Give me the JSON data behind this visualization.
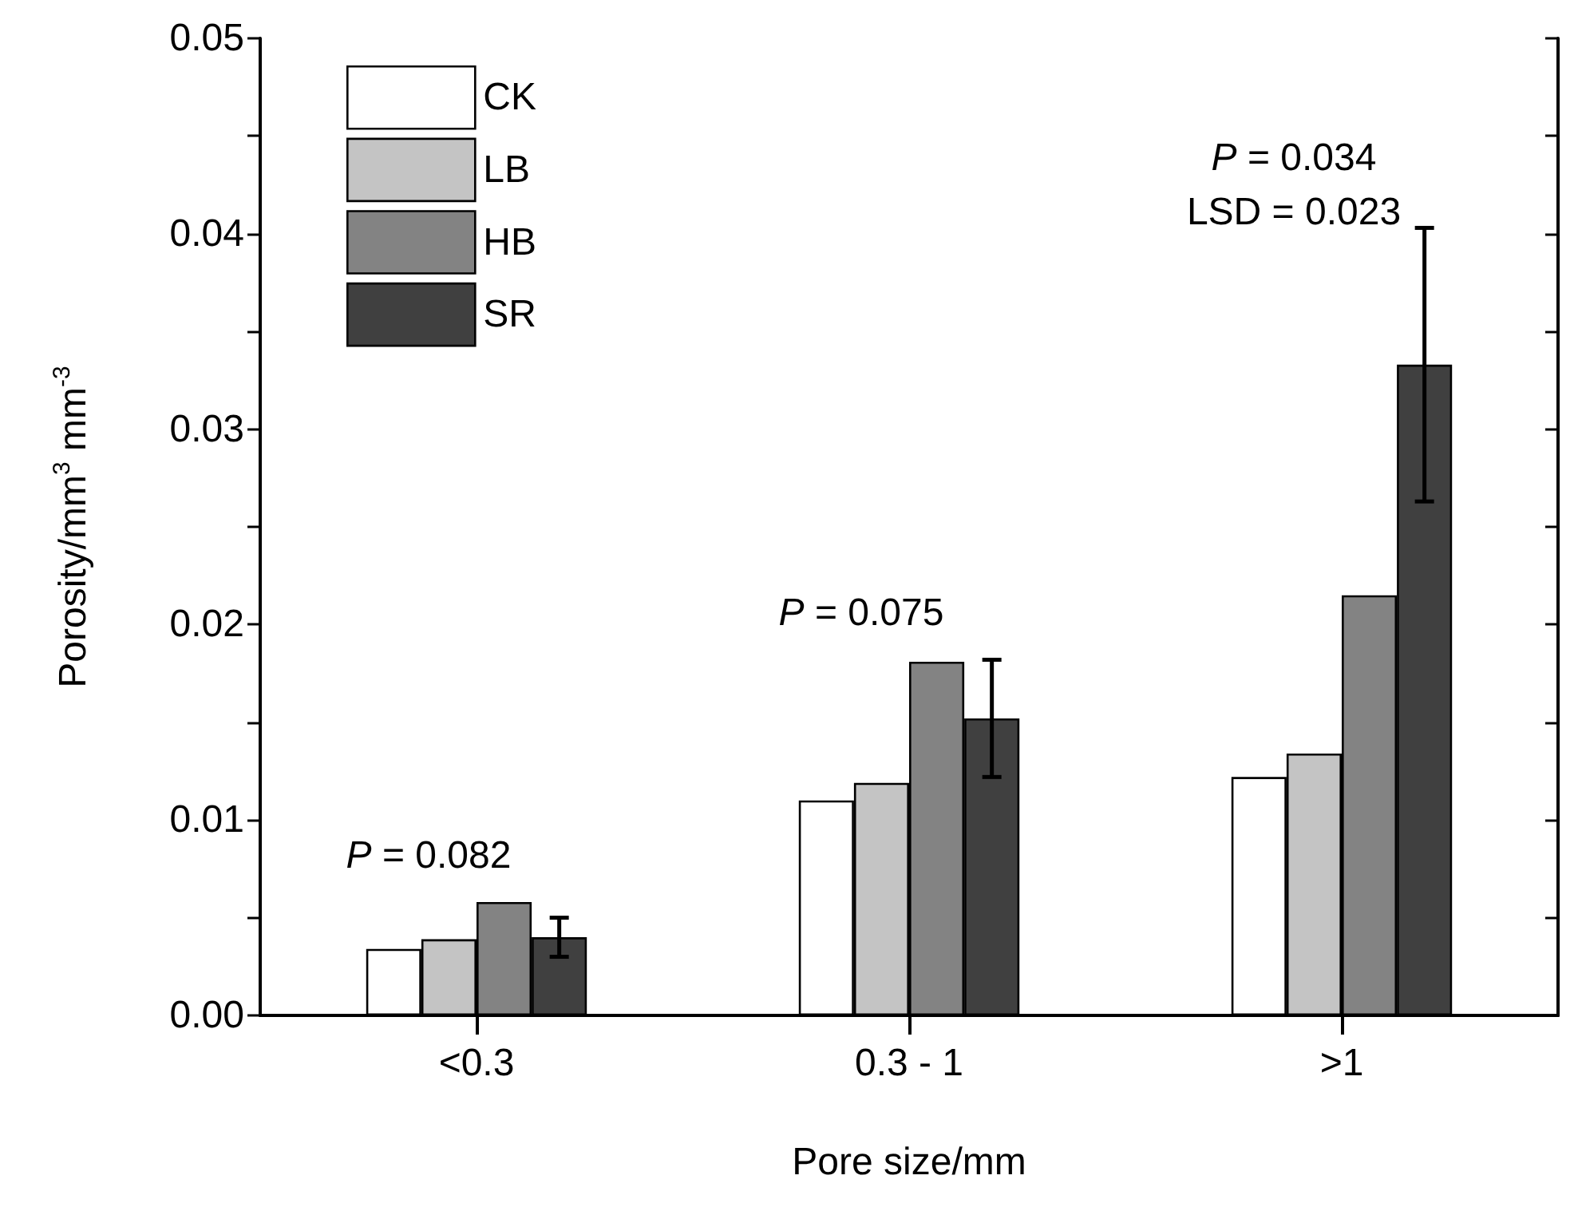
{
  "chart_data": {
    "type": "bar",
    "xlabel": "Pore size/mm",
    "ylabel": "Porosity/mm$^{3}$ mm$^{-3}$",
    "categories": [
      "<0.3",
      "0.3 - 1",
      ">1"
    ],
    "series": [
      {
        "name": "CK",
        "color": "#ffffff",
        "values": [
          0.0034,
          0.011,
          0.0122
        ]
      },
      {
        "name": "LB",
        "color": "#c4c4c4",
        "values": [
          0.0039,
          0.0119,
          0.0134
        ]
      },
      {
        "name": "HB",
        "color": "#838383",
        "values": [
          0.0058,
          0.0181,
          0.0215
        ]
      },
      {
        "name": "SR",
        "color": "#404040",
        "values": [
          0.004,
          0.0152,
          0.0333
        ],
        "errors": [
          0.001,
          0.003,
          0.007
        ]
      }
    ],
    "ylim": [
      0,
      0.05
    ],
    "yticks": [
      {
        "value": 0,
        "label": "0.00"
      },
      {
        "value": 0.005,
        "label": null
      },
      {
        "value": 0.01,
        "label": "0.01"
      },
      {
        "value": 0.015,
        "label": null
      },
      {
        "value": 0.02,
        "label": "0.02"
      },
      {
        "value": 0.025,
        "label": null
      },
      {
        "value": 0.03,
        "label": "0.03"
      },
      {
        "value": 0.035,
        "label": null
      },
      {
        "value": 0.04,
        "label": "0.04"
      },
      {
        "value": 0.045,
        "label": null
      },
      {
        "value": 0.05,
        "label": "0.05"
      }
    ],
    "annotations": [
      "P = 0.082",
      "P = 0.075",
      "P = 0.034\nLSD = 0.023"
    ],
    "legend": "top left",
    "grid": false
  }
}
